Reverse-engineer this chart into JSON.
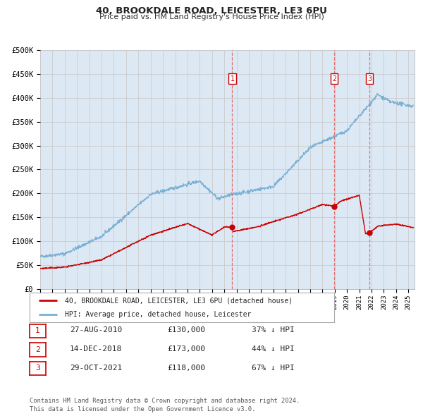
{
  "title": "40, BROOKDALE ROAD, LEICESTER, LE3 6PU",
  "subtitle": "Price paid vs. HM Land Registry's House Price Index (HPI)",
  "background_color": "#ffffff",
  "plot_bg_color": "#dce9f5",
  "grid_color": "#cccccc",
  "hpi_line_color": "#7ab0d4",
  "hpi_fill_color": "#dce9f5",
  "price_line_color": "#cc0000",
  "dashed_line_color": "#e07070",
  "marker_color": "#cc0000",
  "ylim": [
    0,
    500000
  ],
  "yticks": [
    0,
    50000,
    100000,
    150000,
    200000,
    250000,
    300000,
    350000,
    400000,
    450000,
    500000
  ],
  "ytick_labels": [
    "£0",
    "£50K",
    "£100K",
    "£150K",
    "£200K",
    "£250K",
    "£300K",
    "£350K",
    "£400K",
    "£450K",
    "£500K"
  ],
  "sale_events": [
    {
      "date_num": 2010.65,
      "price": 130000,
      "label": "1"
    },
    {
      "date_num": 2018.95,
      "price": 173000,
      "label": "2"
    },
    {
      "date_num": 2021.83,
      "price": 118000,
      "label": "3"
    }
  ],
  "sale_table": [
    {
      "num": "1",
      "date": "27-AUG-2010",
      "price": "£130,000",
      "hpi": "37% ↓ HPI"
    },
    {
      "num": "2",
      "date": "14-DEC-2018",
      "price": "£173,000",
      "hpi": "44% ↓ HPI"
    },
    {
      "num": "3",
      "date": "29-OCT-2021",
      "price": "£118,000",
      "hpi": "67% ↓ HPI"
    }
  ],
  "legend_entries": [
    "40, BROOKDALE ROAD, LEICESTER, LE3 6PU (detached house)",
    "HPI: Average price, detached house, Leicester"
  ],
  "footer": "Contains HM Land Registry data © Crown copyright and database right 2024.\nThis data is licensed under the Open Government Licence v3.0.",
  "xmin": 1995.0,
  "xmax": 2025.5
}
